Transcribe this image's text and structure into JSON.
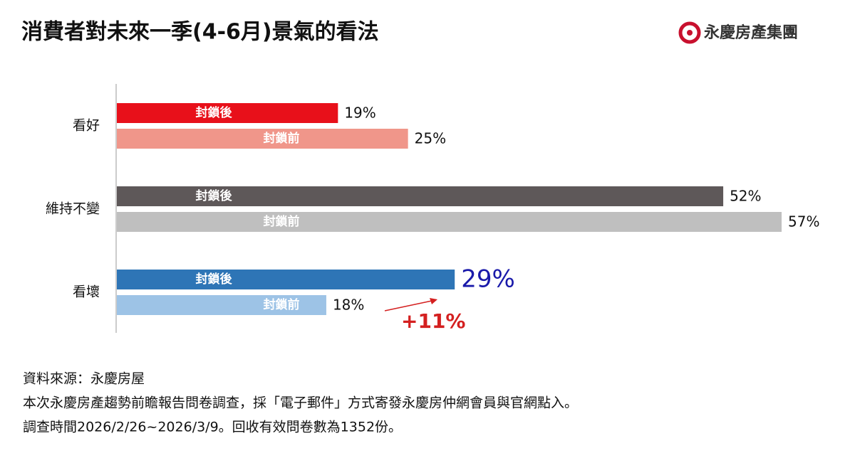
{
  "chart_data": {
    "type": "bar",
    "orientation": "horizontal",
    "title": "消費者對未來一季(4-6月)景氣的看法",
    "logo": "永慶房產集團",
    "categories": [
      "看好",
      "維持不變",
      "看壞"
    ],
    "series": [
      {
        "name": "封鎖後",
        "values": [
          19,
          52,
          29
        ],
        "value_labels": [
          "19%",
          "52%",
          "29%"
        ],
        "colors": [
          "#e8101a",
          "#5e5859",
          "#2e75b6"
        ]
      },
      {
        "name": "封鎖前",
        "values": [
          25,
          57,
          18
        ],
        "value_labels": [
          "25%",
          "57%",
          "18%"
        ],
        "colors": [
          "#f0968a",
          "#bfbfbf",
          "#9dc3e6"
        ]
      }
    ],
    "annotations": [
      {
        "text": "+11%"
      }
    ],
    "notes": [
      "資料來源：永慶房屋",
      "本次永慶房產趨勢前瞻報告問卷調查，採「電子郵件」方式寄發永慶房仲網會員與官網點入。",
      "調查時間2026/2/26~2026/3/9。回收有效問卷數為1352份。"
    ]
  }
}
